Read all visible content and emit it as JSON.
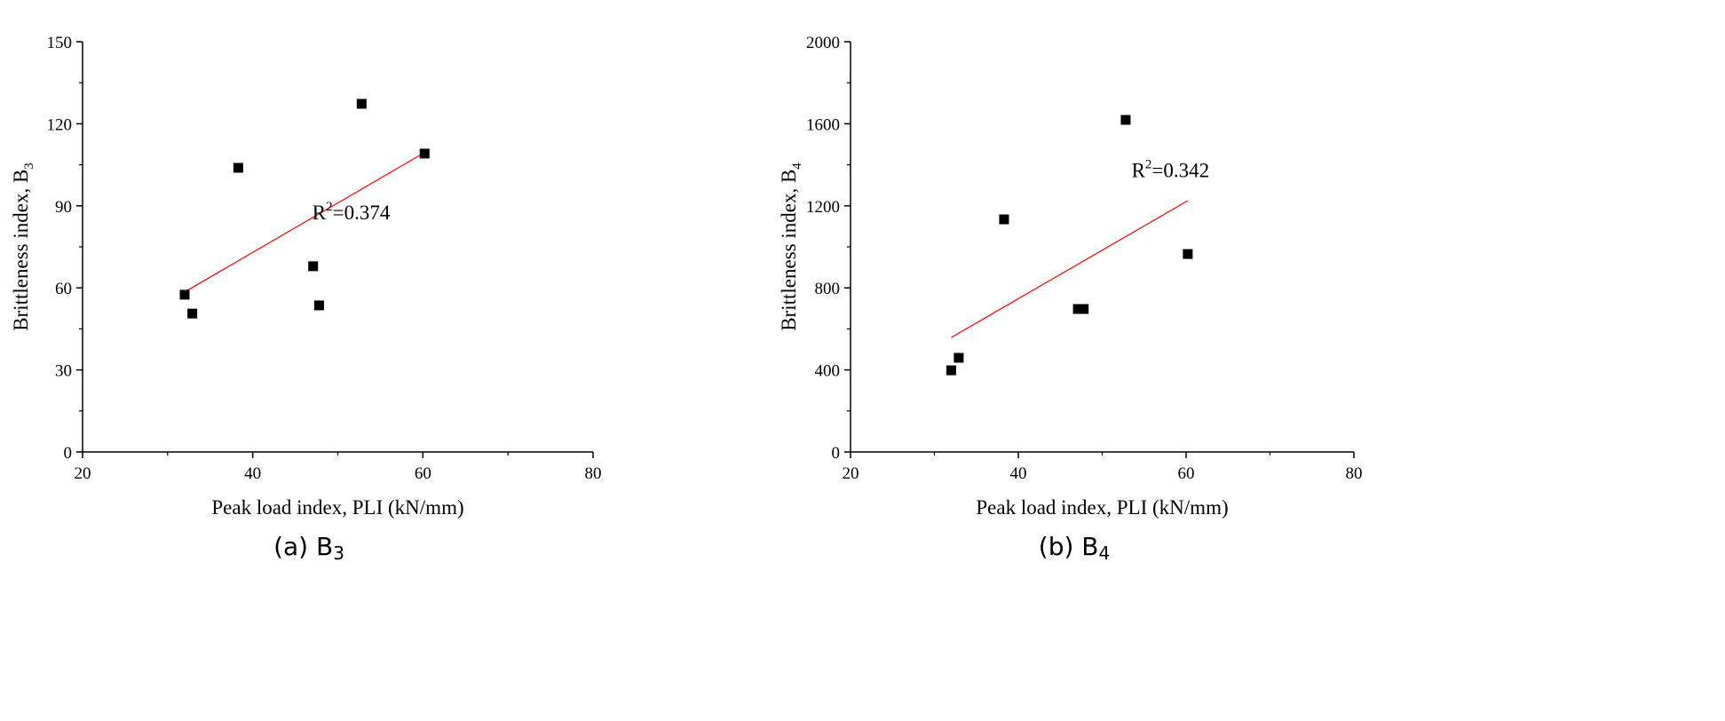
{
  "chart_data": [
    {
      "type": "scatter",
      "caption": "(a) B",
      "caption_sub": "3",
      "xlabel": "Peak load index, PLI (kN/mm)",
      "ylabel": "Brittleness index, B",
      "ylabel_sub": "3",
      "xlim": [
        20,
        80
      ],
      "ylim": [
        0,
        150
      ],
      "xticks": [
        20,
        40,
        60,
        80
      ],
      "yticks": [
        0,
        30,
        60,
        90,
        120,
        150
      ],
      "points": [
        [
          32.0,
          57.5
        ],
        [
          32.9,
          50.6
        ],
        [
          38.3,
          103.9
        ],
        [
          47.1,
          67.9
        ],
        [
          47.8,
          53.6
        ],
        [
          52.8,
          127.3
        ],
        [
          60.2,
          109.1
        ]
      ],
      "fit": {
        "x": [
          32.0,
          60.2
        ],
        "y": [
          58.5,
          109.5
        ],
        "color": "#ff0000"
      },
      "annotation": {
        "prefix": "R",
        "sup": "2",
        "text": "=0.374",
        "x": 47,
        "y": 85
      },
      "marker_color": "#000000"
    },
    {
      "type": "scatter",
      "caption": "(b) B",
      "caption_sub": "4",
      "xlabel": "Peak load index, PLI (kN/mm)",
      "ylabel": "Brittleness index, B",
      "ylabel_sub": "4",
      "xlim": [
        20,
        80
      ],
      "ylim": [
        0,
        2000
      ],
      "xticks": [
        20,
        40,
        60,
        80
      ],
      "yticks": [
        0,
        400,
        800,
        1200,
        1600,
        2000
      ],
      "points": [
        [
          32.0,
          398
        ],
        [
          32.9,
          459
        ],
        [
          38.3,
          1134
        ],
        [
          47.1,
          697
        ],
        [
          47.8,
          697
        ],
        [
          52.8,
          1619
        ],
        [
          60.2,
          965
        ]
      ],
      "fit": {
        "x": [
          32.0,
          60.2
        ],
        "y": [
          558,
          1225
        ],
        "color": "#ff0000"
      },
      "annotation": {
        "prefix": "R",
        "sup": "2",
        "text": "=0.342",
        "x": 53.5,
        "y": 1340
      },
      "marker_color": "#000000"
    }
  ]
}
